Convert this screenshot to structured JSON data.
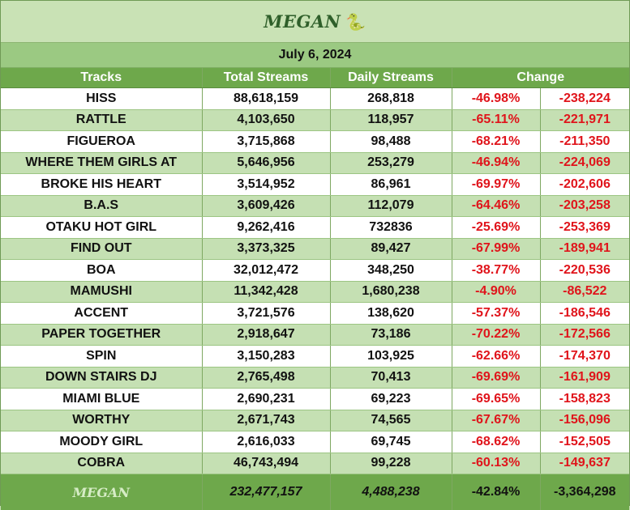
{
  "header": {
    "artist": "MEGAN",
    "snake_glyph": "🐍",
    "date": "July 6, 2024"
  },
  "columns": [
    "Tracks",
    "Total Streams",
    "Daily Streams",
    "Change"
  ],
  "rows": [
    {
      "track": "HISS",
      "total": "88,618,159",
      "daily": "268,818",
      "pct": "-46.98%",
      "abs": "-238,224"
    },
    {
      "track": "RATTLE",
      "total": "4,103,650",
      "daily": "118,957",
      "pct": "-65.11%",
      "abs": "-221,971"
    },
    {
      "track": "FIGUEROA",
      "total": "3,715,868",
      "daily": "98,488",
      "pct": "-68.21%",
      "abs": "-211,350"
    },
    {
      "track": "WHERE THEM GIRLS AT",
      "total": "5,646,956",
      "daily": "253,279",
      "pct": "-46.94%",
      "abs": "-224,069"
    },
    {
      "track": "BROKE HIS HEART",
      "total": "3,514,952",
      "daily": "86,961",
      "pct": "-69.97%",
      "abs": "-202,606"
    },
    {
      "track": "B.A.S",
      "total": "3,609,426",
      "daily": "112,079",
      "pct": "-64.46%",
      "abs": "-203,258"
    },
    {
      "track": "OTAKU HOT GIRL",
      "total": "9,262,416",
      "daily": "732836",
      "pct": "-25.69%",
      "abs": "-253,369"
    },
    {
      "track": "FIND OUT",
      "total": "3,373,325",
      "daily": "89,427",
      "pct": "-67.99%",
      "abs": "-189,941"
    },
    {
      "track": "BOA",
      "total": "32,012,472",
      "daily": "348,250",
      "pct": "-38.77%",
      "abs": "-220,536"
    },
    {
      "track": "MAMUSHI",
      "total": "11,342,428",
      "daily": "1,680,238",
      "pct": "-4.90%",
      "abs": "-86,522"
    },
    {
      "track": "ACCENT",
      "total": "3,721,576",
      "daily": "138,620",
      "pct": "-57.37%",
      "abs": "-186,546"
    },
    {
      "track": "PAPER TOGETHER",
      "total": "2,918,647",
      "daily": "73,186",
      "pct": "-70.22%",
      "abs": "-172,566"
    },
    {
      "track": "SPIN",
      "total": "3,150,283",
      "daily": "103,925",
      "pct": "-62.66%",
      "abs": "-174,370"
    },
    {
      "track": "DOWN STAIRS DJ",
      "total": "2,765,498",
      "daily": "70,413",
      "pct": "-69.69%",
      "abs": "-161,909"
    },
    {
      "track": "MIAMI BLUE",
      "total": "2,690,231",
      "daily": "69,223",
      "pct": "-69.65%",
      "abs": "-158,823"
    },
    {
      "track": "WORTHY",
      "total": "2,671,743",
      "daily": "74,565",
      "pct": "-67.67%",
      "abs": "-156,096"
    },
    {
      "track": "MOODY GIRL",
      "total": "2,616,033",
      "daily": "69,745",
      "pct": "-68.62%",
      "abs": "-152,505"
    },
    {
      "track": "COBRA",
      "total": "46,743,494",
      "daily": "99,228",
      "pct": "-60.13%",
      "abs": "-149,637"
    }
  ],
  "footer": {
    "label": "MEGAN",
    "total": "232,477,157",
    "daily": "4,488,238",
    "pct": "-42.84%",
    "abs": "-3,364,298"
  },
  "colors": {
    "header_green": "#6ea84b",
    "date_green": "#9bc982",
    "title_bg": "#c9e2b5",
    "row_alt": "#c5e0b3",
    "negative": "#e0141b"
  }
}
